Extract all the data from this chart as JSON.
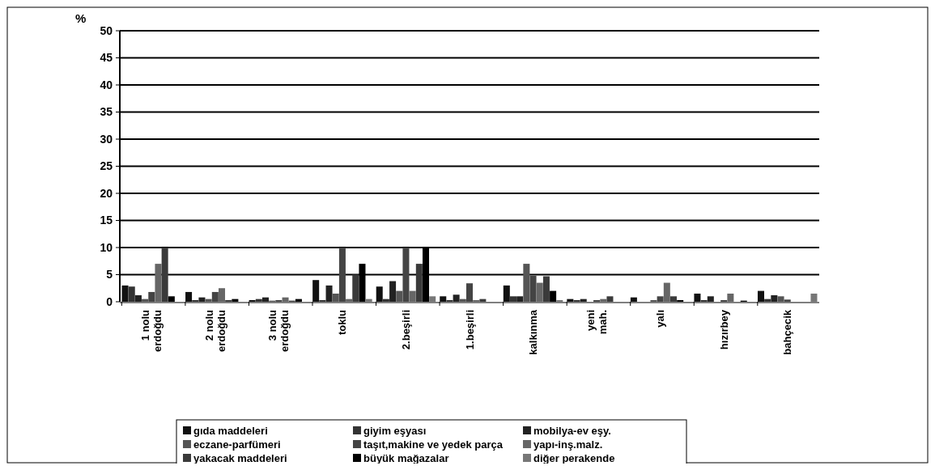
{
  "chart_data": {
    "type": "bar",
    "ylabel": "%",
    "categories": [
      "1 nolu erdoğdu",
      "2 nolu erdoğdu",
      "3 nolu erdoğdu",
      "toklu",
      "2.beşirli",
      "1.beşirli",
      "kalkınma",
      "yeni mah.",
      "yalı",
      "hızırbey",
      "bahçecik"
    ],
    "series": [
      {
        "name": "gıda maddeleri",
        "color": "#111111",
        "values": [
          3,
          1.8,
          0.3,
          4,
          2.8,
          1,
          3,
          0.5,
          0.8,
          1.5,
          2
        ]
      },
      {
        "name": "giyim eşyası",
        "color": "#333333",
        "values": [
          2.8,
          0.3,
          0.5,
          0.3,
          0.5,
          0.3,
          1,
          0.3,
          0,
          0.3,
          0.5
        ]
      },
      {
        "name": "mobilya-ev eşy.",
        "color": "#222222",
        "values": [
          1.2,
          0.8,
          0.8,
          3,
          3.8,
          1.3,
          1,
          0.5,
          0,
          1,
          1.2
        ]
      },
      {
        "name": "eczane-parfümeri",
        "color": "#555555",
        "values": [
          0.5,
          0.5,
          0.2,
          1.5,
          2,
          0.5,
          7,
          0,
          0.3,
          0,
          1
        ]
      },
      {
        "name": "taşıt,makine ve yedek parça",
        "color": "#444444",
        "values": [
          1.8,
          1.8,
          0.3,
          10,
          10,
          3.4,
          4.8,
          0.3,
          1,
          0.3,
          0.4
        ]
      },
      {
        "name": "yapı-inş.malz.",
        "color": "#666666",
        "values": [
          7,
          2.5,
          0.8,
          0.5,
          2,
          0.3,
          3.5,
          0.5,
          3.5,
          1.5,
          0
        ]
      },
      {
        "name": "yakacak maddeleri",
        "color": "#3a3a3a",
        "values": [
          10,
          0.3,
          0.2,
          5,
          7,
          0.5,
          4.7,
          1,
          1,
          0,
          0
        ]
      },
      {
        "name": "büyük mağazalar",
        "color": "#000000",
        "values": [
          1,
          0.5,
          0.5,
          7,
          10,
          0,
          2,
          0,
          0.3,
          0.2,
          0
        ]
      },
      {
        "name": "diğer perakende",
        "color": "#777777",
        "values": [
          0,
          0,
          0,
          0.5,
          1,
          0,
          0.3,
          0,
          0,
          0,
          1.5
        ]
      }
    ],
    "ylim": [
      0,
      50
    ],
    "yticks": [
      0,
      5,
      10,
      15,
      20,
      25,
      30,
      35,
      40,
      45,
      50
    ],
    "grid": "y",
    "legend": "bottom"
  }
}
